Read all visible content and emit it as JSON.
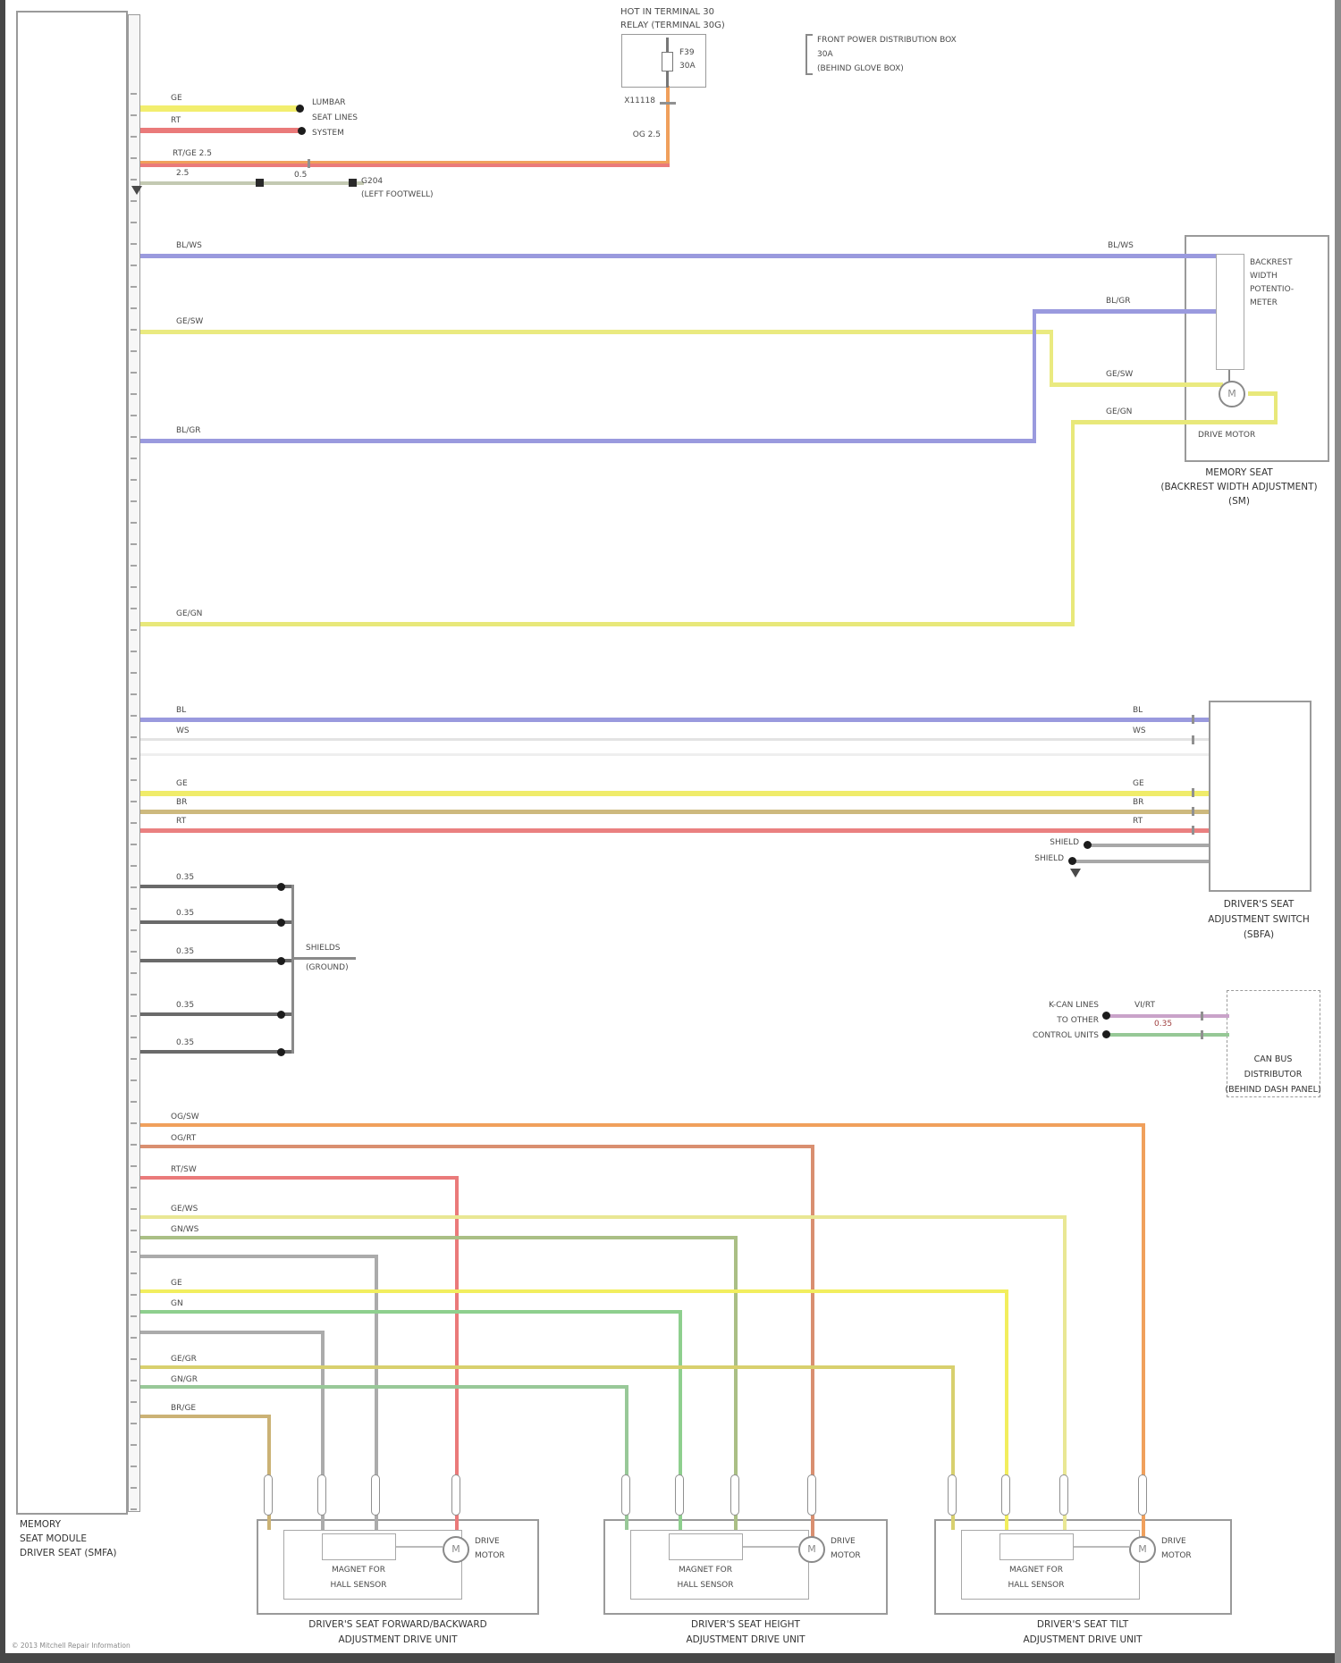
{
  "colors": {
    "yellow": "#f2ee6e",
    "red": "#ea7a7a",
    "orange": "#f0a05c",
    "salmon": "#d98f70",
    "blue": "#9a9ade",
    "pale_yellow": "#e9e794",
    "olive_green": "#aabf85",
    "bright_yellow": "#f2ee5e",
    "green": "#8ecf8e",
    "dark_yellow": "#d8d06e",
    "tan": "#cbb275",
    "gray_wire": "#ababab",
    "shield_wire": "#6a6a6a",
    "ground_wire": "#c3c9b2",
    "violet": "#c9a3c9",
    "can_green": "#96c896"
  },
  "module": {
    "caption": [
      "MEMORY",
      "SEAT MODULE",
      "DRIVER SEAT (SMFA)"
    ]
  },
  "power": {
    "hot1": "HOT IN TERMINAL 30",
    "hot2": "RELAY (TERMINAL 30G)",
    "fuse_name": "F39",
    "fuse_amp": "30A",
    "bracket_lines": [
      "FRONT POWER DISTRIBUTION BOX",
      "30A",
      "(BEHIND GLOVE BOX)"
    ],
    "connector": "X11118",
    "wire_label": "OG 2.5"
  },
  "labels": {
    "ge": "GE",
    "rt": "RT",
    "rt_ge": "RT/GE 2.5",
    "size25": "2.5",
    "size05": "0.5",
    "s035": "0.35",
    "bl_ws": "BL/WS",
    "bl_gr": "BL/GR",
    "ge_sw": "GE/SW",
    "ge_gn": "GE/GN",
    "bl": "BL",
    "ws": "WS",
    "br": "BR",
    "shield": "SHIELD",
    "vi_rt": "VI/RT",
    "og_sw": "OG/SW",
    "og_rt": "OG/RT",
    "rt_sw": "RT/SW",
    "ge_ws": "GE/WS",
    "gn_ws": "GN/WS",
    "gn": "GN",
    "ge_gr": "GE/GR",
    "gn_gr": "GN/GR",
    "br_ge": "BR/GE"
  },
  "notes": {
    "splice": [
      "LUMBAR",
      "SEAT LINES",
      "SYSTEM"
    ],
    "ground": [
      "G204",
      "(LEFT FOOTWELL)"
    ],
    "shields": [
      "SHIELDS",
      "(GROUND)"
    ],
    "can": [
      "K-CAN LINES",
      "TO OTHER",
      "CONTROL UNITS"
    ]
  },
  "backrest": {
    "pot_lines": [
      "BACKREST",
      "WIDTH",
      "POTENTIO-",
      "METER"
    ],
    "motor_label": "DRIVE MOTOR",
    "caption": [
      "MEMORY SEAT",
      "(BACKREST WIDTH ADJUSTMENT)",
      "(SM)"
    ]
  },
  "switch": {
    "caption": [
      "DRIVER'S SEAT",
      "ADJUSTMENT SWITCH",
      "(SBFA)"
    ]
  },
  "can_box": {
    "caption": [
      "CAN BUS",
      "DISTRIBUTOR",
      "(BEHIND DASH PANEL)"
    ]
  },
  "drives": {
    "m": "M",
    "sensor": [
      "MAGNET FOR",
      "HALL SENSOR"
    ],
    "motor": [
      "DRIVE",
      "MOTOR"
    ],
    "caption1": [
      "DRIVER'S SEAT FORWARD/BACKWARD",
      "ADJUSTMENT DRIVE UNIT"
    ],
    "caption2": [
      "DRIVER'S SEAT HEIGHT",
      "ADJUSTMENT DRIVE UNIT"
    ],
    "caption3": [
      "DRIVER'S SEAT TILT",
      "ADJUSTMENT DRIVE UNIT"
    ]
  },
  "footer": "© 2013 Mitchell Repair Information"
}
